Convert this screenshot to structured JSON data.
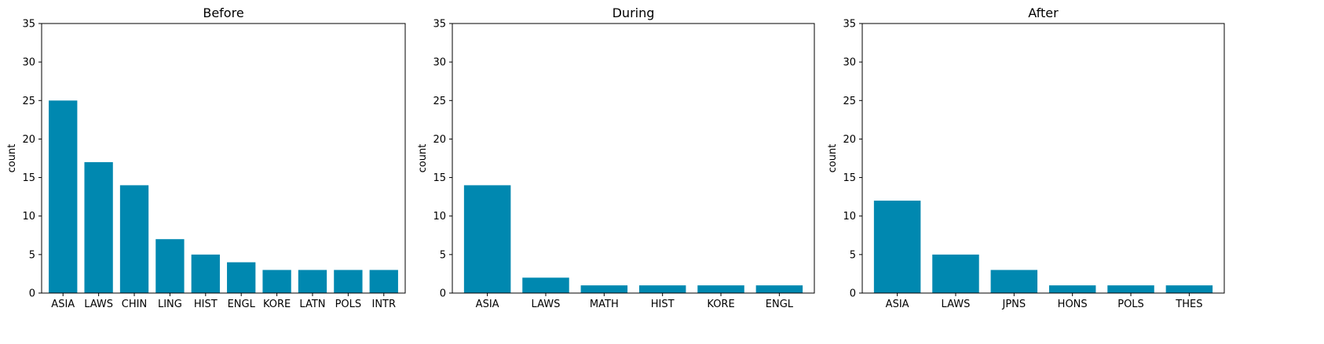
{
  "chart_data": [
    {
      "type": "bar",
      "title": "Before",
      "xlabel": "",
      "ylabel": "count",
      "categories": [
        "ASIA",
        "LAWS",
        "CHIN",
        "LING",
        "HIST",
        "ENGL",
        "KORE",
        "LATN",
        "POLS",
        "INTR"
      ],
      "values": [
        25,
        17,
        14,
        7,
        5,
        4,
        3,
        3,
        3,
        3
      ],
      "ylim": [
        0,
        35
      ],
      "yticks": [
        0,
        5,
        10,
        15,
        20,
        25,
        30,
        35
      ],
      "grid": false,
      "color": "#0088b0"
    },
    {
      "type": "bar",
      "title": "During",
      "xlabel": "",
      "ylabel": "count",
      "categories": [
        "ASIA",
        "LAWS",
        "MATH",
        "HIST",
        "KORE",
        "ENGL"
      ],
      "values": [
        14,
        2,
        1,
        1,
        1,
        1
      ],
      "ylim": [
        0,
        35
      ],
      "yticks": [
        0,
        5,
        10,
        15,
        20,
        25,
        30,
        35
      ],
      "grid": false,
      "color": "#0088b0"
    },
    {
      "type": "bar",
      "title": "After",
      "xlabel": "",
      "ylabel": "count",
      "categories": [
        "ASIA",
        "LAWS",
        "JPNS",
        "HONS",
        "POLS",
        "THES"
      ],
      "values": [
        12,
        5,
        3,
        1,
        1,
        1
      ],
      "ylim": [
        0,
        35
      ],
      "yticks": [
        0,
        5,
        10,
        15,
        20,
        25,
        30,
        35
      ],
      "grid": false,
      "color": "#0088b0"
    }
  ]
}
